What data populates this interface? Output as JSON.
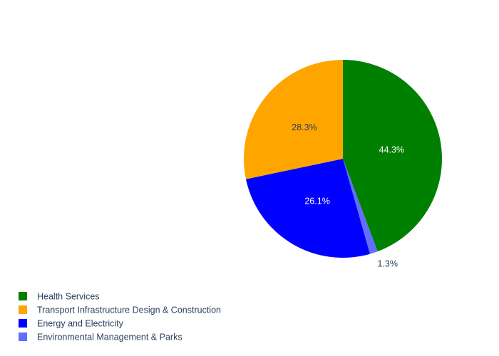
{
  "chart_data": {
    "type": "pie",
    "title": "",
    "legend_position": "bottom-left",
    "slices": [
      {
        "label": "Health Services",
        "value": 44.3,
        "color": "#008000",
        "text_color": "#ffffff",
        "text_position": "inside"
      },
      {
        "label": "Environmental Management & Parks",
        "value": 1.3,
        "color": "#636efa",
        "text_color": "#2a3f5f",
        "text_position": "outside"
      },
      {
        "label": "Energy and Electricity",
        "value": 26.1,
        "color": "#0000ff",
        "text_color": "#ffffff",
        "text_position": "inside"
      },
      {
        "label": "Transport Infrastructure Design & Construction",
        "value": 28.3,
        "color": "#ffa500",
        "text_color": "#2a3f5f",
        "text_position": "inside"
      }
    ],
    "legend_order": [
      "Health Services",
      "Transport Infrastructure Design & Construction",
      "Energy and Electricity",
      "Environmental Management & Parks"
    ]
  }
}
